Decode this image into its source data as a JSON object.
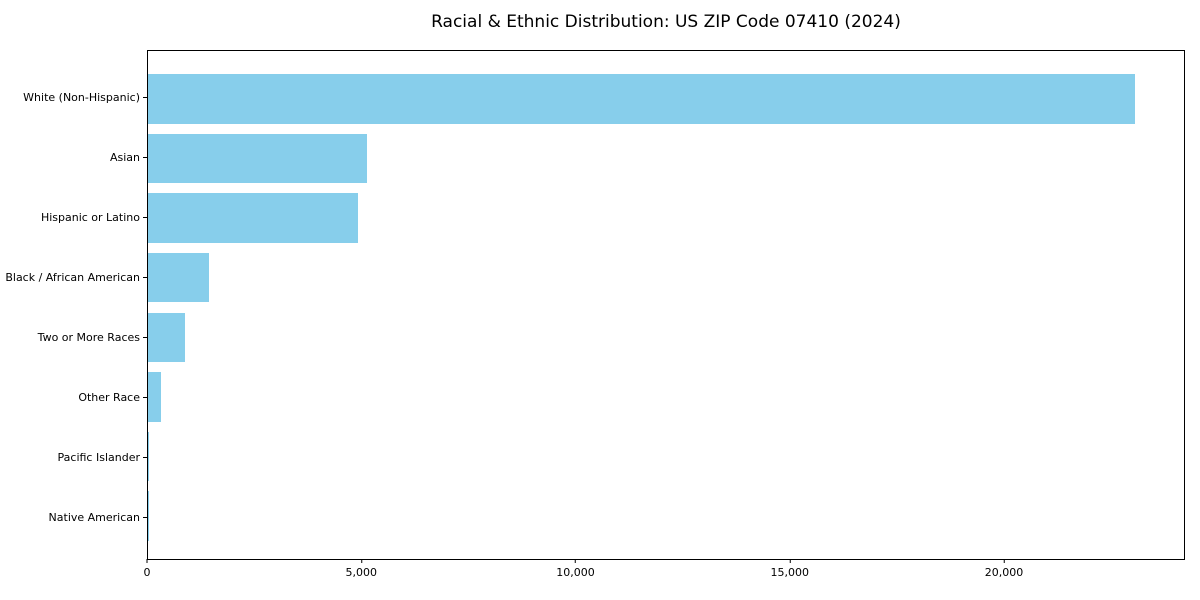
{
  "chart_data": {
    "type": "bar",
    "orientation": "horizontal",
    "title": "Racial & Ethnic Distribution: US ZIP Code 07410 (2024)",
    "categories": [
      "White (Non-Hispanic)",
      "Asian",
      "Hispanic or Latino",
      "Black / African American",
      "Two or More Races",
      "Other Race",
      "Pacific Islander",
      "Native American"
    ],
    "values": [
      23080,
      5110,
      4900,
      1420,
      870,
      300,
      25,
      10
    ],
    "xlabel": "",
    "ylabel": "",
    "xlim": [
      0,
      24224
    ],
    "x_ticks": [
      {
        "value": 0,
        "label": "0"
      },
      {
        "value": 5000,
        "label": "5,000"
      },
      {
        "value": 10000,
        "label": "10,000"
      },
      {
        "value": 15000,
        "label": "15,000"
      },
      {
        "value": 20000,
        "label": "20,000"
      }
    ],
    "grid": false,
    "colors": {
      "bar": "#87CEEB",
      "axis": "#000000",
      "text": "#000000",
      "background": "#ffffff"
    }
  }
}
